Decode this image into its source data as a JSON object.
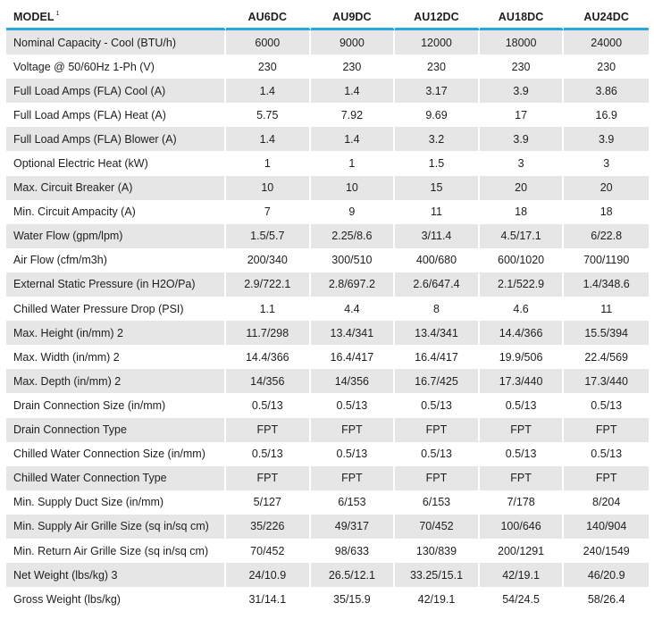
{
  "table": {
    "model_label": "MODEL",
    "model_footnote": "1",
    "models": [
      "AU6DC",
      "AU9DC",
      "AU12DC",
      "AU18DC",
      "AU24DC"
    ],
    "rows": [
      {
        "label": "Nominal Capacity - Cool (BTU/h)",
        "values": [
          "6000",
          "9000",
          "12000",
          "18000",
          "24000"
        ]
      },
      {
        "label": "Voltage @ 50/60Hz 1-Ph (V)",
        "values": [
          "230",
          "230",
          "230",
          "230",
          "230"
        ]
      },
      {
        "label": "Full Load Amps (FLA) Cool (A)",
        "values": [
          "1.4",
          "1.4",
          "3.17",
          "3.9",
          "3.86"
        ]
      },
      {
        "label": "Full Load Amps (FLA) Heat (A)",
        "values": [
          "5.75",
          "7.92",
          "9.69",
          "17",
          "16.9"
        ]
      },
      {
        "label": "Full Load Amps (FLA) Blower (A)",
        "values": [
          "1.4",
          "1.4",
          "3.2",
          "3.9",
          "3.9"
        ]
      },
      {
        "label": "Optional Electric Heat (kW)",
        "values": [
          "1",
          "1",
          "1.5",
          "3",
          "3"
        ]
      },
      {
        "label": "Max. Circuit Breaker (A)",
        "values": [
          "10",
          "10",
          "15",
          "20",
          "20"
        ]
      },
      {
        "label": "Min. Circuit Ampacity (A)",
        "values": [
          "7",
          "9",
          "11",
          "18",
          "18"
        ]
      },
      {
        "label": "Water Flow (gpm/lpm)",
        "values": [
          "1.5/5.7",
          "2.25/8.6",
          "3/11.4",
          "4.5/17.1",
          "6/22.8"
        ]
      },
      {
        "label": "Air Flow (cfm/m3h)",
        "values": [
          "200/340",
          "300/510",
          "400/680",
          "600/1020",
          "700/1190"
        ]
      },
      {
        "label": "External Static Pressure (in H2O/Pa)",
        "values": [
          "2.9/722.1",
          "2.8/697.2",
          "2.6/647.4",
          "2.1/522.9",
          "1.4/348.6"
        ]
      },
      {
        "label": "Chilled Water Pressure Drop (PSI)",
        "values": [
          "1.1",
          "4.4",
          "8",
          "4.6",
          "11"
        ]
      },
      {
        "label": "Max. Height (in/mm) 2",
        "values": [
          "11.7/298",
          "13.4/341",
          "13.4/341",
          "14.4/366",
          "15.5/394"
        ]
      },
      {
        "label": "Max. Width (in/mm) 2",
        "values": [
          "14.4/366",
          "16.4/417",
          "16.4/417",
          "19.9/506",
          "22.4/569"
        ]
      },
      {
        "label": "Max. Depth (in/mm) 2",
        "values": [
          "14/356",
          "14/356",
          "16.7/425",
          "17.3/440",
          "17.3/440"
        ]
      },
      {
        "label": "Drain Connection Size (in/mm)",
        "values": [
          "0.5/13",
          "0.5/13",
          "0.5/13",
          "0.5/13",
          "0.5/13"
        ]
      },
      {
        "label": "Drain Connection Type",
        "values": [
          "FPT",
          "FPT",
          "FPT",
          "FPT",
          "FPT"
        ]
      },
      {
        "label": "Chilled Water Connection Size (in/mm)",
        "values": [
          "0.5/13",
          "0.5/13",
          "0.5/13",
          "0.5/13",
          "0.5/13"
        ]
      },
      {
        "label": "Chilled Water Connection Type",
        "values": [
          "FPT",
          "FPT",
          "FPT",
          "FPT",
          "FPT"
        ]
      },
      {
        "label": "Min. Supply Duct Size (in/mm)",
        "values": [
          "5/127",
          "6/153",
          "6/153",
          "7/178",
          "8/204"
        ]
      },
      {
        "label": "Min. Supply Air Grille Size (sq in/sq cm)",
        "values": [
          "35/226",
          "49/317",
          "70/452",
          "100/646",
          "140/904"
        ]
      },
      {
        "label": "Min. Return Air Grille Size (sq in/sq cm)",
        "values": [
          "70/452",
          "98/633",
          "130/839",
          "200/1291",
          "240/1549"
        ]
      },
      {
        "label": "Net Weight (lbs/kg) 3",
        "values": [
          "24/10.9",
          "26.5/12.1",
          "33.25/15.1",
          "42/19.1",
          "46/20.9"
        ]
      },
      {
        "label": "Gross Weight (lbs/kg)",
        "values": [
          "31/14.1",
          "35/15.9",
          "42/19.1",
          "54/24.5",
          "58/26.4"
        ]
      }
    ]
  },
  "colors": {
    "header_rule": "#29a8e0",
    "stripe": "#e6e6e6",
    "text": "#1e1e1e"
  }
}
